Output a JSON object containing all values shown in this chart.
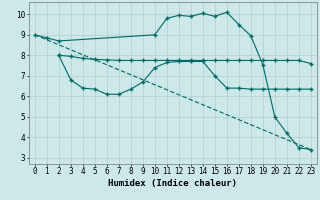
{
  "xlabel": "Humidex (Indice chaleur)",
  "bg_color": "#cce8e8",
  "grid_color": "#b8d4d4",
  "line_color": "#006868",
  "xlim": [
    -0.5,
    23.5
  ],
  "ylim": [
    2.7,
    10.6
  ],
  "yticks": [
    3,
    4,
    5,
    6,
    7,
    8,
    9,
    10
  ],
  "xticks": [
    0,
    1,
    2,
    3,
    4,
    5,
    6,
    7,
    8,
    9,
    10,
    11,
    12,
    13,
    14,
    15,
    16,
    17,
    18,
    19,
    20,
    21,
    22,
    23
  ],
  "line1_x": [
    0,
    1,
    2,
    10,
    11,
    12,
    13,
    14,
    15,
    16,
    17,
    18,
    19,
    20,
    21,
    22,
    23
  ],
  "line1_y": [
    9.0,
    8.85,
    8.7,
    9.0,
    9.8,
    9.95,
    9.9,
    10.05,
    9.9,
    10.1,
    9.5,
    8.95,
    7.55,
    5.0,
    4.2,
    3.5,
    3.4
  ],
  "line2_x": [
    2,
    3,
    4,
    5,
    6,
    7,
    8,
    9,
    10,
    11,
    12,
    13,
    14,
    15,
    16,
    17,
    18,
    19,
    20,
    21,
    22,
    23
  ],
  "line2_y": [
    8.0,
    7.95,
    7.85,
    7.8,
    7.78,
    7.75,
    7.75,
    7.75,
    7.75,
    7.75,
    7.75,
    7.75,
    7.75,
    7.75,
    7.75,
    7.75,
    7.75,
    7.75,
    7.75,
    7.75,
    7.75,
    7.6
  ],
  "line3_x": [
    2,
    3,
    4,
    5,
    6,
    7,
    8,
    9,
    10,
    11,
    12,
    13,
    14,
    15,
    16,
    17,
    18,
    19,
    20,
    21,
    22,
    23
  ],
  "line3_y": [
    8.0,
    6.8,
    6.4,
    6.35,
    6.1,
    6.1,
    6.35,
    6.7,
    7.4,
    7.65,
    7.7,
    7.7,
    7.7,
    7.0,
    6.4,
    6.4,
    6.35,
    6.35,
    6.35,
    6.35,
    6.35,
    6.35
  ],
  "line4_x": [
    0,
    23
  ],
  "line4_y": [
    9.0,
    3.4
  ],
  "font_family": "monospace",
  "tick_fontsize": 5.5,
  "xlabel_fontsize": 6.5
}
